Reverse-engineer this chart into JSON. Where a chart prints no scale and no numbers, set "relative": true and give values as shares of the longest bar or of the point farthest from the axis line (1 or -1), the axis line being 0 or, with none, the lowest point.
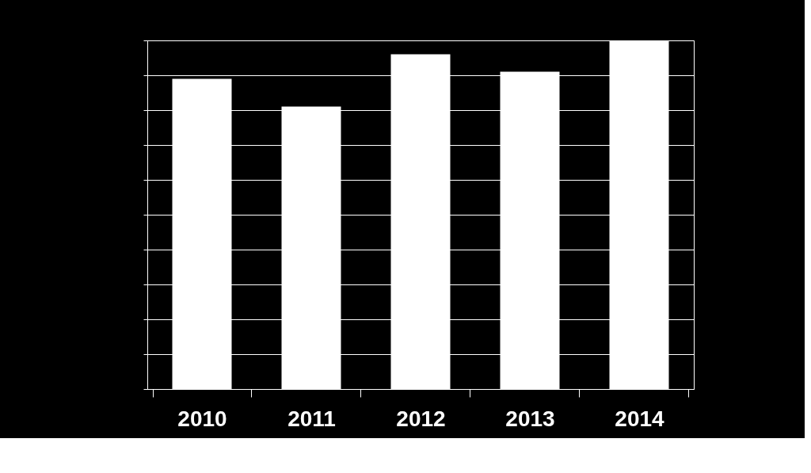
{
  "chart_data": {
    "type": "bar",
    "relative": true,
    "categories": [
      "2010",
      "2011",
      "2012",
      "2013",
      "2014"
    ],
    "values": [
      0.89,
      0.81,
      0.96,
      0.91,
      1
    ],
    "color": "#ffffff",
    "grid": true
  }
}
